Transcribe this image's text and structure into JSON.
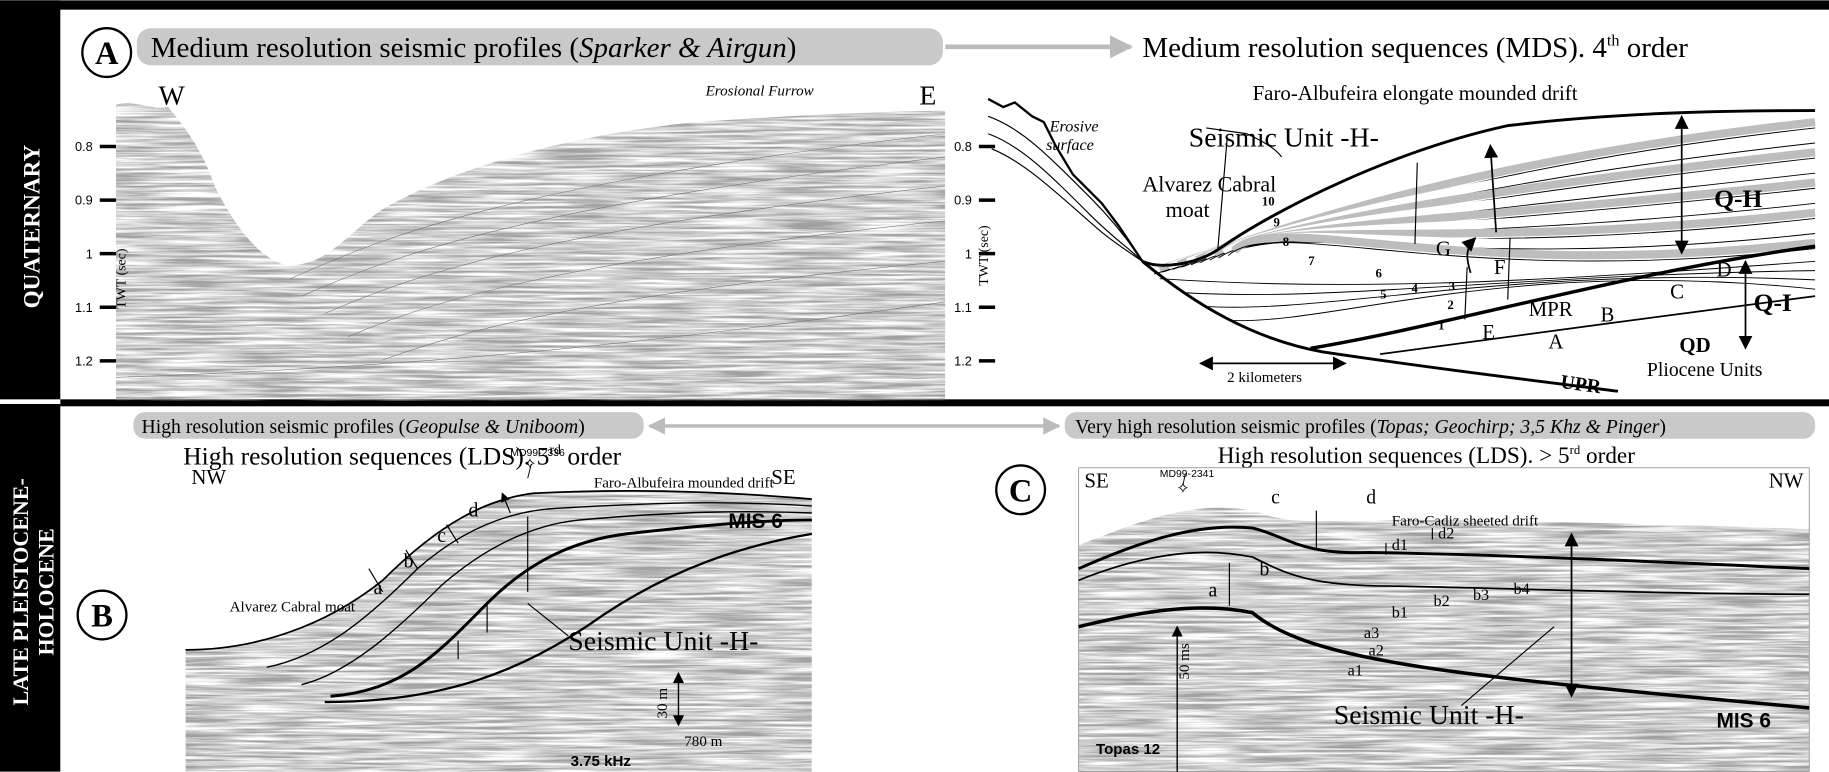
{
  "side_labels": {
    "top": "QUATERNARY",
    "bottom": [
      "LATE PLEISTOCENE-",
      "HOLOCENE"
    ]
  },
  "panel_a": {
    "letter": "A",
    "left_title": {
      "text": "Medium resolution seismic profiles  (",
      "italic": "Sparker & Airgun",
      "close": ")"
    },
    "right_title": {
      "text": "Medium resolution sequences (MDS). 4",
      "sup": "th",
      "end": " order"
    },
    "profile": {
      "west": "W",
      "east": "E",
      "feature": "Erosional Furrow",
      "axis_label": "TWT (sec)",
      "ticks": [
        0.8,
        0.9,
        1,
        1.1,
        1.2
      ]
    },
    "interpretation": {
      "erosive_surface": [
        "Erosive",
        "surface"
      ],
      "drift": "Faro-Albufeira elongate mounded drift",
      "unit": "Seismic Unit -H-",
      "moat": [
        "Alvarez Cabral",
        "moat"
      ],
      "sequences": [
        "10",
        "9",
        "8",
        "7",
        "6",
        "5",
        "4",
        "3",
        "2",
        "1"
      ],
      "units": [
        "G",
        "F",
        "E",
        "MPR",
        "D",
        "C",
        "B",
        "A"
      ],
      "q_h": "Q-H",
      "q_i": "Q-I",
      "qd": "QD",
      "pliocene": "Pliocene Units",
      "upr": "UPR",
      "scale": "2 kilometers"
    }
  },
  "panel_b": {
    "letter": "B",
    "title": {
      "text": "High resolution seismic profiles  (",
      "italic": "Geopulse & Uniboom",
      "close": ")"
    },
    "subtitle": {
      "text": "High resolution sequences (LDS). 5",
      "sup": "rd",
      "end": " order"
    },
    "nw": "NW",
    "se": "SE",
    "core": "MD99-2336",
    "drift": "Faro-Albufeira mounded drift",
    "mis": "MIS 6",
    "reflectors": [
      "d",
      "c",
      "b",
      "a"
    ],
    "moat": "Alvarez Cabral moat",
    "unit": "Seismic Unit -H-",
    "vscale": "30 m",
    "hscale": "780 m",
    "source": "3.75 kHz"
  },
  "panel_c": {
    "letter": "C",
    "title": {
      "text": "Very high resolution seismic profiles  (",
      "italic": "Topas; Geochirp; 3,5 Khz & Pinger",
      "close": ")"
    },
    "subtitle": {
      "text": "High resolution sequences (LDS). > 5",
      "sup": "rd",
      "end": " order"
    },
    "se": "SE",
    "nw": "NW",
    "core": "MD99-2341",
    "drift": "Faro-Cadiz sheeted drift",
    "labels": [
      "c",
      "d",
      "d2",
      "d1",
      "b",
      "a",
      "b2",
      "b3",
      "b4",
      "b1",
      "a3",
      "a2",
      "a1"
    ],
    "vscale": "50 ms",
    "unit": "Seismic Unit -H-",
    "mis": "MIS 6",
    "source": "Topas 12"
  }
}
